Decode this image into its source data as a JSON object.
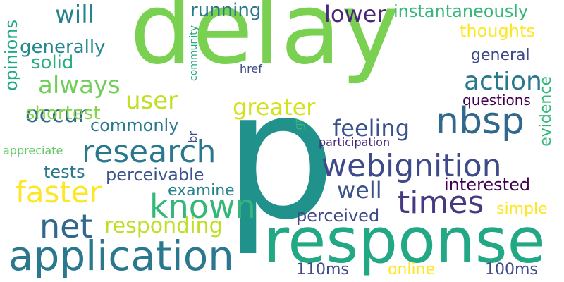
{
  "words": [
    {
      "text": "delay",
      "color": "#7ad151"
    },
    {
      "text": "p",
      "color": "#21918c"
    },
    {
      "text": "response",
      "color": "#22a884"
    },
    {
      "text": "application",
      "color": "#2a788e"
    },
    {
      "text": "webignition",
      "color": "#3e4a89"
    },
    {
      "text": "nbsp",
      "color": "#31688e"
    },
    {
      "text": "research",
      "color": "#2a788e"
    },
    {
      "text": "known",
      "color": "#35b779"
    },
    {
      "text": "faster",
      "color": "#fde725"
    },
    {
      "text": "times",
      "color": "#443a83"
    },
    {
      "text": "net",
      "color": "#31688e"
    },
    {
      "text": "responding",
      "color": "#bddf26"
    },
    {
      "text": "greater",
      "color": "#d2e21b"
    },
    {
      "text": "action",
      "color": "#2a788e"
    },
    {
      "text": "feeling",
      "color": "#3b528b"
    },
    {
      "text": "always",
      "color": "#6ece58"
    },
    {
      "text": "user",
      "color": "#c2df23"
    },
    {
      "text": "occur",
      "color": "#31688e"
    },
    {
      "text": "will",
      "color": "#26828e"
    },
    {
      "text": "lower",
      "color": "#482878"
    },
    {
      "text": "well",
      "color": "#3b528b"
    },
    {
      "text": "instantaneously",
      "color": "#35b779"
    },
    {
      "text": "running",
      "color": "#2a788e"
    },
    {
      "text": "generally",
      "color": "#23898e"
    },
    {
      "text": "solid",
      "color": "#28ae80"
    },
    {
      "text": "shortest",
      "color": "#86d549"
    },
    {
      "text": "commonly",
      "color": "#2a788e"
    },
    {
      "text": "thoughts",
      "color": "#fde725"
    },
    {
      "text": "general",
      "color": "#3e4a89"
    },
    {
      "text": "questions",
      "color": "#440154"
    },
    {
      "text": "evidence",
      "color": "#35b779"
    },
    {
      "text": "opinions",
      "color": "#22a884"
    },
    {
      "text": "interested",
      "color": "#440154"
    },
    {
      "text": "perceivable",
      "color": "#3b528b"
    },
    {
      "text": "examine",
      "color": "#26828e"
    },
    {
      "text": "tests",
      "color": "#2a788e"
    },
    {
      "text": "perceived",
      "color": "#3e4a89"
    },
    {
      "text": "simple",
      "color": "#fde725"
    },
    {
      "text": "110ms",
      "color": "#3e4a89"
    },
    {
      "text": "online",
      "color": "#fde725"
    },
    {
      "text": "100ms",
      "color": "#3e4a89"
    },
    {
      "text": "appreciate",
      "color": "#5ec962"
    },
    {
      "text": "participation",
      "color": "#482878"
    },
    {
      "text": "community",
      "color": "#22a884"
    },
    {
      "text": "href",
      "color": "#3e4a89"
    },
    {
      "text": "br",
      "color": "#3e4a89"
    },
    {
      "text": "gt",
      "color": "#35b779"
    }
  ]
}
